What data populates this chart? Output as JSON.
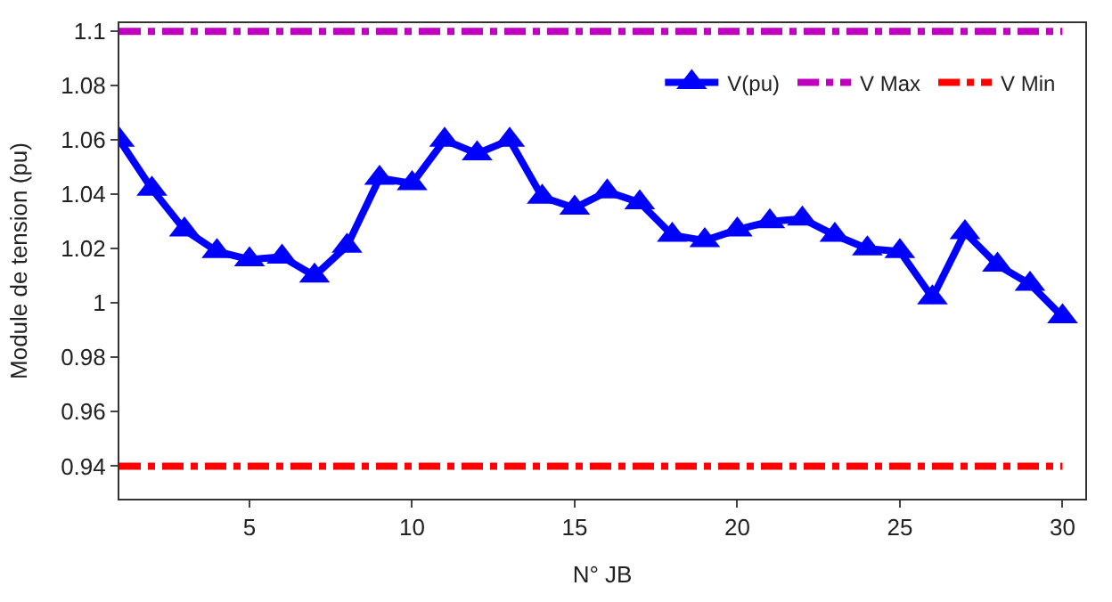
{
  "chart_data": {
    "type": "line",
    "xlabel": "N° JB",
    "ylabel": "Module de tension (pu)",
    "xlim": [
      1,
      30.7
    ],
    "xticks": [
      5,
      10,
      15,
      20,
      25,
      30
    ],
    "ylim": [
      0.928,
      1.103
    ],
    "yticks": [
      0.94,
      0.96,
      0.98,
      1,
      1.02,
      1.04,
      1.06,
      1.08,
      1.1
    ],
    "legend": "top right",
    "series": [
      {
        "name": "V(pu)",
        "color": "#0000ff",
        "marker": "triangle",
        "line_style": "solid",
        "x": [
          1,
          2,
          3,
          4,
          5,
          6,
          7,
          8,
          9,
          10,
          11,
          12,
          13,
          14,
          15,
          16,
          17,
          18,
          19,
          20,
          21,
          22,
          23,
          24,
          25,
          26,
          27,
          28,
          29,
          30
        ],
        "values": [
          1.06,
          1.042,
          1.027,
          1.019,
          1.016,
          1.017,
          1.01,
          1.021,
          1.046,
          1.044,
          1.06,
          1.055,
          1.06,
          1.039,
          1.035,
          1.041,
          1.037,
          1.025,
          1.023,
          1.027,
          1.03,
          1.031,
          1.025,
          1.02,
          1.019,
          1.002,
          1.026,
          1.014,
          1.007,
          0.995
        ]
      },
      {
        "name": "V Max",
        "color": "#bf00bf",
        "marker": "none",
        "line_style": "dashed",
        "x": [
          1,
          30
        ],
        "values": [
          1.1,
          1.1
        ]
      },
      {
        "name": "V Min",
        "color": "#ff0000",
        "marker": "none",
        "line_style": "dashed",
        "x": [
          1,
          30
        ],
        "values": [
          0.94,
          0.94
        ]
      }
    ]
  }
}
